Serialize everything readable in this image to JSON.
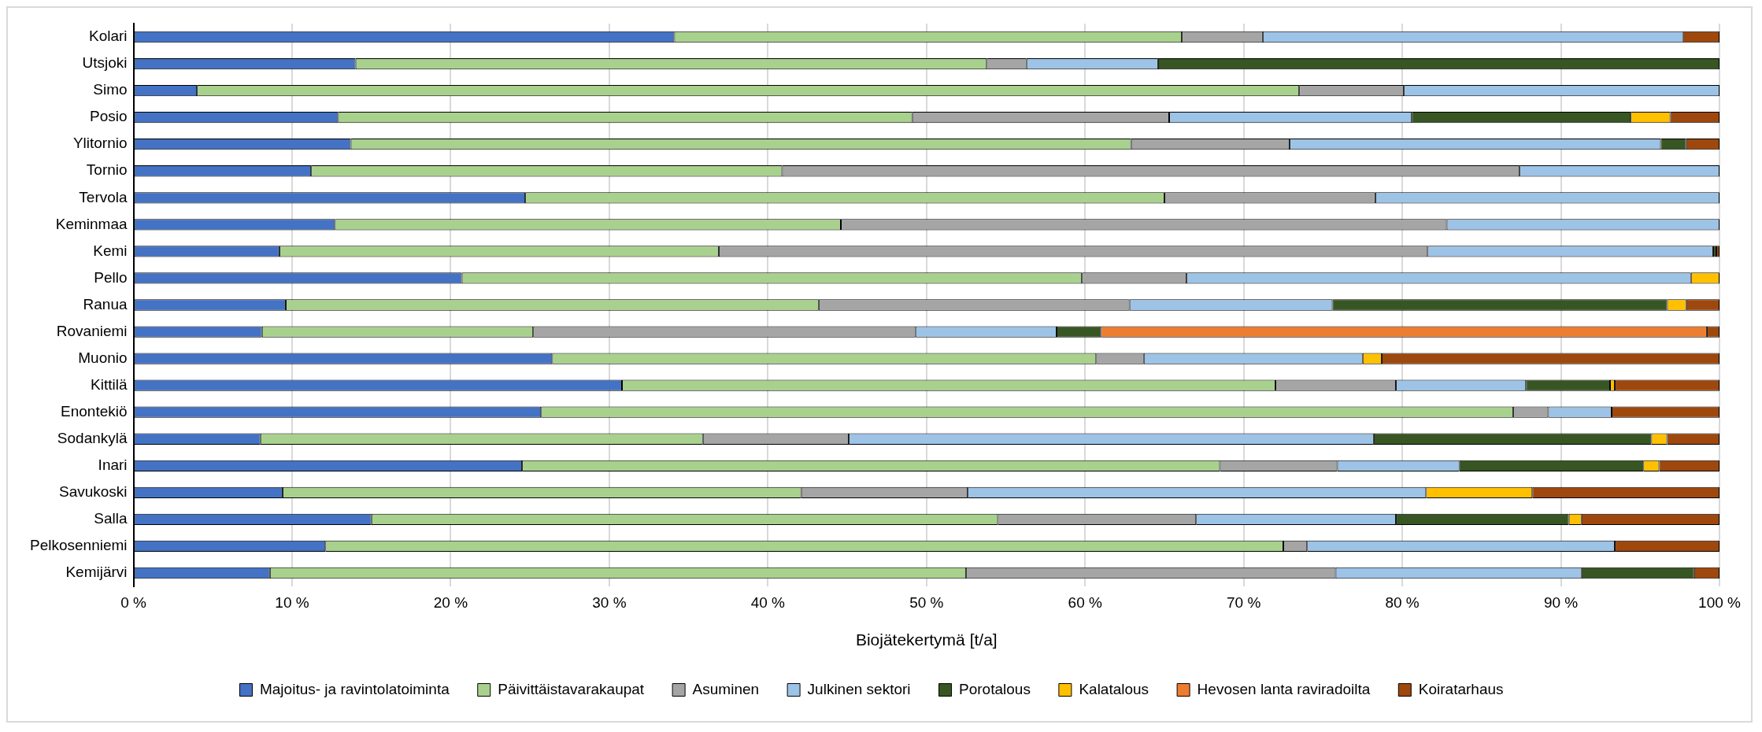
{
  "chart_data": {
    "type": "bar",
    "orientation": "horizontal",
    "stacked": true,
    "xlabel": "Biojätekertymä [t/a]",
    "categories": [
      "Kolari",
      "Utsjoki",
      "Simo",
      "Posio",
      "Ylitornio",
      "Tornio",
      "Tervola",
      "Keminmaa",
      "Kemi",
      "Pello",
      "Ranua",
      "Rovaniemi",
      "Muonio",
      "Kittilä",
      "Enontekiö",
      "Sodankylä",
      "Inari",
      "Savukoski",
      "Salla",
      "Pelkosenniemi",
      "Kemijärvi"
    ],
    "series": [
      {
        "name": "Majoitus- ja ravintolatoiminta",
        "color": "#4472c4",
        "values": [
          34.1,
          14.0,
          4.0,
          12.9,
          13.7,
          11.2,
          24.7,
          12.7,
          9.2,
          20.7,
          9.6,
          8.1,
          26.4,
          30.8,
          25.7,
          8.0,
          24.5,
          9.4,
          15.0,
          12.1,
          8.6
        ]
      },
      {
        "name": "Päivittäistavarakaupat",
        "color": "#a9d18e",
        "values": [
          32.0,
          39.8,
          69.5,
          36.2,
          49.2,
          29.7,
          40.3,
          31.9,
          27.7,
          39.1,
          33.6,
          17.1,
          34.3,
          41.2,
          61.3,
          27.9,
          44.0,
          32.7,
          39.5,
          60.4,
          43.9
        ]
      },
      {
        "name": "Asuminen",
        "color": "#a5a5a5",
        "values": [
          5.1,
          2.5,
          6.6,
          16.2,
          10.0,
          46.5,
          13.3,
          38.2,
          44.7,
          6.6,
          19.6,
          24.1,
          3.0,
          7.6,
          2.2,
          9.2,
          7.4,
          10.5,
          12.5,
          1.5,
          23.3
        ]
      },
      {
        "name": "Julkinen sektori",
        "color": "#9dc3e6",
        "values": [
          26.5,
          8.3,
          19.9,
          15.3,
          23.4,
          12.6,
          21.7,
          17.2,
          18.0,
          31.8,
          12.8,
          8.9,
          13.8,
          8.2,
          4.0,
          33.1,
          7.7,
          28.9,
          12.6,
          19.4,
          15.5
        ]
      },
      {
        "name": "Porotalous",
        "color": "#375623",
        "values": [
          null,
          35.4,
          null,
          13.8,
          1.6,
          null,
          null,
          null,
          0.2,
          null,
          21.1,
          2.8,
          null,
          5.3,
          null,
          17.5,
          11.6,
          null,
          10.9,
          null,
          7.1
        ]
      },
      {
        "name": "Kalatalous",
        "color": "#ffc000",
        "values": [
          null,
          null,
          null,
          2.5,
          null,
          null,
          null,
          null,
          null,
          1.8,
          1.2,
          null,
          1.2,
          0.3,
          null,
          1.0,
          1.0,
          6.7,
          0.8,
          null,
          null
        ]
      },
      {
        "name": "Hevosen lanta raviradoilta",
        "color": "#ed7d31",
        "values": [
          null,
          null,
          null,
          null,
          null,
          null,
          null,
          null,
          null,
          null,
          null,
          38.2,
          null,
          null,
          null,
          null,
          null,
          null,
          null,
          null,
          null
        ]
      },
      {
        "name": "Koiratarhaus",
        "color": "#9e480e",
        "values": [
          2.3,
          null,
          null,
          3.1,
          2.1,
          null,
          null,
          null,
          0.2,
          null,
          2.1,
          0.8,
          21.3,
          6.6,
          6.8,
          3.3,
          3.8,
          11.8,
          8.7,
          6.6,
          1.6
        ]
      }
    ],
    "xlim": [
      0,
      100
    ],
    "xticks": [
      {
        "value": 0,
        "label": "0 %"
      },
      {
        "value": 10,
        "label": "10 %"
      },
      {
        "value": 20,
        "label": "20 %"
      },
      {
        "value": 30,
        "label": "30 %"
      },
      {
        "value": 40,
        "label": "40 %"
      },
      {
        "value": 50,
        "label": "50 %"
      },
      {
        "value": 60,
        "label": "60 %"
      },
      {
        "value": 70,
        "label": "70 %"
      },
      {
        "value": 80,
        "label": "80 %"
      },
      {
        "value": 90,
        "label": "90 %"
      },
      {
        "value": 100,
        "label": "100 %"
      }
    ],
    "grid": "x",
    "legend": "bottom"
  }
}
